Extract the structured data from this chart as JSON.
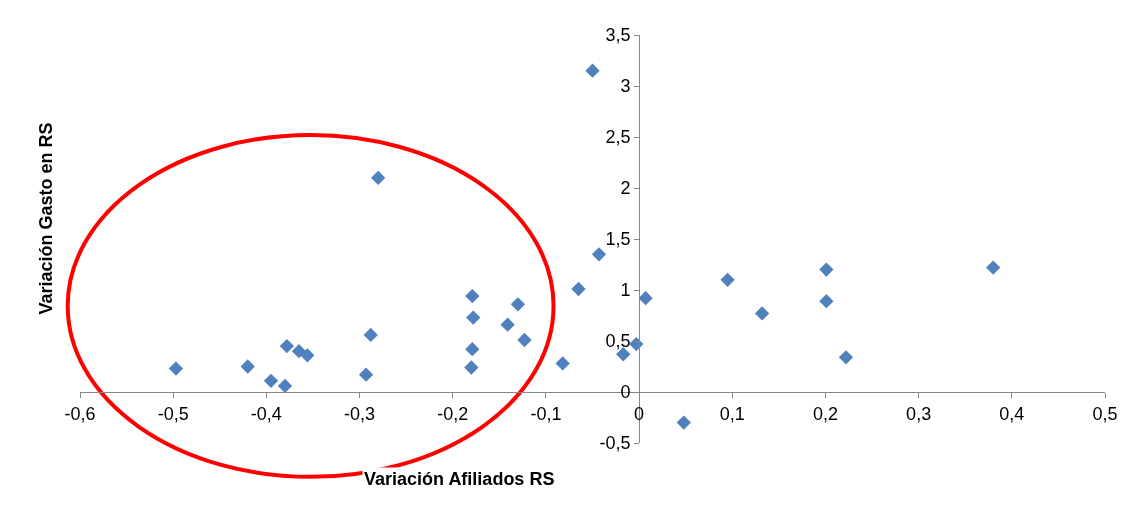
{
  "chart_data": {
    "type": "scatter",
    "xlabel": "Variación Afiliados RS",
    "ylabel": "Variación Gasto en RS",
    "x": [
      -0.05,
      -0.28,
      -0.043,
      -0.065,
      0.007,
      0.095,
      0.201,
      0.38,
      0.201,
      0.132,
      0.222,
      0.048,
      -0.003,
      -0.017,
      -0.082,
      -0.123,
      -0.13,
      -0.141,
      -0.179,
      -0.178,
      -0.179,
      -0.18,
      -0.288,
      -0.293,
      -0.378,
      -0.365,
      -0.356,
      -0.395,
      -0.38,
      -0.42,
      -0.497
    ],
    "values": [
      3.15,
      2.1,
      1.35,
      1.01,
      0.92,
      1.1,
      1.2,
      1.22,
      0.89,
      0.77,
      0.34,
      -0.3,
      0.47,
      0.37,
      0.28,
      0.51,
      0.86,
      0.66,
      0.94,
      0.73,
      0.42,
      0.24,
      0.56,
      0.17,
      0.45,
      0.4,
      0.36,
      0.11,
      0.06,
      0.25,
      0.23
    ],
    "color": "#4f81bd",
    "marker": "diamond",
    "legend": false,
    "xlim": [
      -0.6,
      0.5
    ],
    "xticks": [
      {
        "value": -0.6,
        "label": "-0,6"
      },
      {
        "value": -0.5,
        "label": "-0,5"
      },
      {
        "value": -0.4,
        "label": "-0,4"
      },
      {
        "value": -0.3,
        "label": "-0,3"
      },
      {
        "value": -0.2,
        "label": "-0,2"
      },
      {
        "value": -0.1,
        "label": "-0,1"
      },
      0,
      {
        "value": 0.1,
        "label": "0,1"
      },
      {
        "value": 0.2,
        "label": "0,2"
      },
      {
        "value": 0.3,
        "label": "0,3"
      },
      {
        "value": 0.4,
        "label": "0,4"
      },
      {
        "value": 0.5,
        "label": "0,5"
      }
    ],
    "ylim": [
      -0.5,
      3.5
    ],
    "yticks": [
      {
        "value": -0.5,
        "label": "-0,5"
      },
      0,
      {
        "value": 0.5,
        "label": "0,5"
      },
      1,
      {
        "value": 1.5,
        "label": "1,5"
      },
      2,
      {
        "value": 2.5,
        "label": "2,5"
      },
      3,
      {
        "value": 3.5,
        "label": "3,5"
      }
    ]
  }
}
